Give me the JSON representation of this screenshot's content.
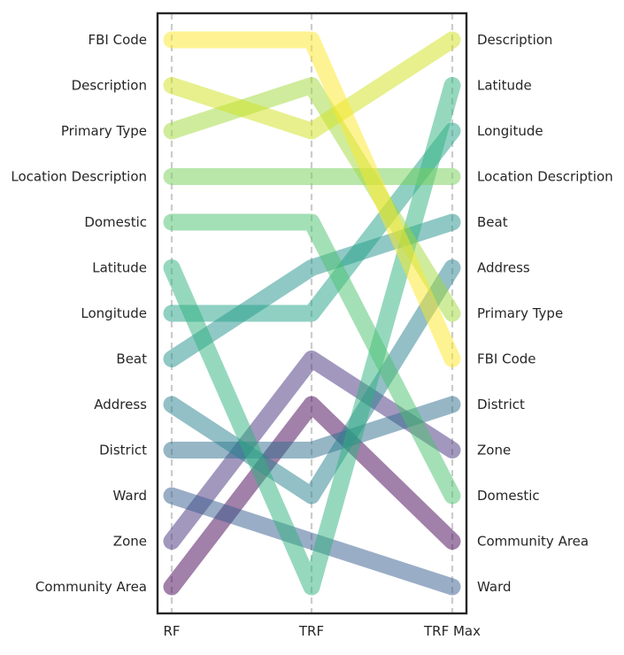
{
  "chart_data": {
    "type": "line",
    "title": "",
    "xlabel": "",
    "ylabel": "",
    "columns": [
      "RF",
      "TRF",
      "TRF Max"
    ],
    "rank_count": 13,
    "series": [
      {
        "name": "FBI Code",
        "ranks": [
          1,
          1,
          8
        ],
        "color": "#fde725"
      },
      {
        "name": "Description",
        "ranks": [
          2,
          3,
          1
        ],
        "color": "#d0e11c"
      },
      {
        "name": "Primary Type",
        "ranks": [
          3,
          2,
          7
        ],
        "color": "#a0da39"
      },
      {
        "name": "Location Description",
        "ranks": [
          4,
          4,
          4
        ],
        "color": "#73d056"
      },
      {
        "name": "Domestic",
        "ranks": [
          5,
          5,
          11
        ],
        "color": "#4ac16d"
      },
      {
        "name": "Latitude",
        "ranks": [
          6,
          13,
          2
        ],
        "color": "#2db27d"
      },
      {
        "name": "Longitude",
        "ranks": [
          7,
          7,
          3
        ],
        "color": "#1fa187"
      },
      {
        "name": "Beat",
        "ranks": [
          8,
          6,
          5
        ],
        "color": "#21918c"
      },
      {
        "name": "Address",
        "ranks": [
          9,
          11,
          6
        ],
        "color": "#277f8e"
      },
      {
        "name": "District",
        "ranks": [
          10,
          10,
          9
        ],
        "color": "#2e6e8e"
      },
      {
        "name": "Ward",
        "ranks": [
          11,
          12,
          13
        ],
        "color": "#365c8d"
      },
      {
        "name": "Zone",
        "ranks": [
          12,
          8,
          10
        ],
        "color": "#46327e"
      },
      {
        "name": "Community Area",
        "ranks": [
          13,
          9,
          12
        ],
        "color": "#440154"
      }
    ],
    "left_labels": [
      "FBI Code",
      "Description",
      "Primary Type",
      "Location Description",
      "Domestic",
      "Latitude",
      "Longitude",
      "Beat",
      "Address",
      "District",
      "Ward",
      "Zone",
      "Community Area"
    ],
    "right_labels": [
      "Description",
      "Latitude",
      "Longitude",
      "Location Description",
      "Beat",
      "Address",
      "Primary Type",
      "FBI Code",
      "District",
      "Zone",
      "Domestic",
      "Community Area",
      "Ward"
    ],
    "grid": "vertical dashed at each column",
    "legend": "none"
  }
}
